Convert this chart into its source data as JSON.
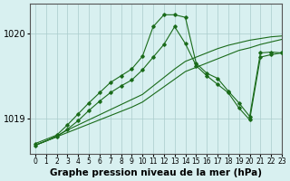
{
  "bg_color": "#d8f0f0",
  "plot_bg_color": "#d8f0f0",
  "grid_color": "#aacccc",
  "line_color": "#1a6b1a",
  "title": "Graphe pression niveau de la mer (hPa)",
  "ylim": [
    1018.58,
    1020.35
  ],
  "xlim": [
    -0.5,
    23
  ],
  "yticks": [
    1019,
    1020
  ],
  "xticks": [
    0,
    1,
    2,
    3,
    4,
    5,
    6,
    7,
    8,
    9,
    10,
    11,
    12,
    13,
    14,
    15,
    16,
    17,
    18,
    19,
    20,
    21,
    22,
    23
  ],
  "series1_x": [
    0,
    1,
    2,
    3,
    4,
    5,
    6,
    7,
    8,
    9,
    10,
    11,
    12,
    13,
    14,
    15,
    16,
    17,
    18,
    19,
    20,
    21,
    22,
    23
  ],
  "series1_y": [
    1018.68,
    1018.73,
    1018.78,
    1018.83,
    1018.88,
    1018.93,
    1018.98,
    1019.03,
    1019.08,
    1019.13,
    1019.19,
    1019.28,
    1019.37,
    1019.46,
    1019.55,
    1019.6,
    1019.65,
    1019.7,
    1019.75,
    1019.8,
    1019.83,
    1019.87,
    1019.9,
    1019.93
  ],
  "series2_x": [
    0,
    1,
    2,
    3,
    4,
    5,
    6,
    7,
    8,
    9,
    10,
    11,
    12,
    13,
    14,
    15,
    16,
    17,
    18,
    19,
    20,
    21,
    22,
    23
  ],
  "series2_y": [
    1018.68,
    1018.73,
    1018.79,
    1018.86,
    1018.92,
    1018.98,
    1019.04,
    1019.1,
    1019.16,
    1019.22,
    1019.28,
    1019.38,
    1019.48,
    1019.58,
    1019.67,
    1019.72,
    1019.77,
    1019.82,
    1019.86,
    1019.89,
    1019.92,
    1019.94,
    1019.96,
    1019.97
  ],
  "series3_x": [
    0,
    2,
    3,
    4,
    5,
    6,
    7,
    8,
    9,
    10,
    11,
    12,
    13,
    14,
    15,
    16,
    17,
    18,
    19,
    20,
    21,
    22,
    23
  ],
  "series3_y": [
    1018.68,
    1018.78,
    1018.87,
    1018.97,
    1019.09,
    1019.2,
    1019.3,
    1019.38,
    1019.45,
    1019.57,
    1019.72,
    1019.87,
    1020.08,
    1019.88,
    1019.62,
    1019.5,
    1019.4,
    1019.3,
    1019.12,
    1018.98,
    1019.72,
    1019.75,
    1019.77
  ],
  "series4_x": [
    0,
    2,
    3,
    4,
    5,
    6,
    7,
    8,
    9,
    10,
    11,
    12,
    13,
    14,
    15,
    16,
    17,
    18,
    19,
    20,
    21,
    22,
    23
  ],
  "series4_y": [
    1018.7,
    1018.8,
    1018.92,
    1019.05,
    1019.18,
    1019.3,
    1019.42,
    1019.5,
    1019.58,
    1019.73,
    1020.08,
    1020.22,
    1020.22,
    1020.19,
    1019.65,
    1019.53,
    1019.47,
    1019.32,
    1019.18,
    1019.02,
    1019.77,
    1019.78,
    1019.77
  ],
  "title_fontsize": 7.5,
  "tick_fontsize": 6.5
}
